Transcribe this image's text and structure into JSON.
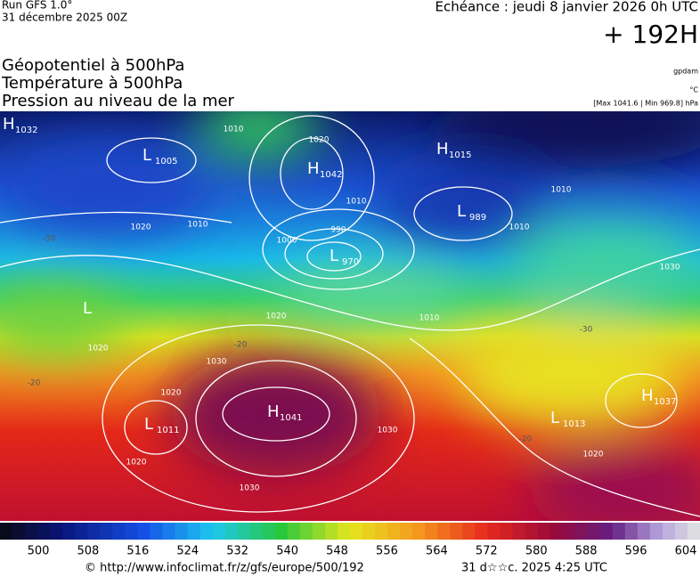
{
  "header": {
    "run": "Run GFS 1.0°",
    "run_date": "31 décembre 2025 00Z",
    "valid": "Echéance : jeudi 8 janvier 2026 0h UTC",
    "lead": "+ 192H"
  },
  "fields": [
    "Géopotentiel à 500hPa",
    "Température à 500hPa",
    "Pression au niveau de la mer"
  ],
  "units": [
    "gpdam",
    "°C",
    "[Max 1041.6 | Min 969.8] hPa"
  ],
  "centers": [
    {
      "type": "H",
      "value": 1032
    },
    {
      "type": "L",
      "value": 1005
    },
    {
      "type": "H",
      "value": 1042
    },
    {
      "type": "H",
      "value": 1015
    },
    {
      "type": "L",
      "value": 989
    },
    {
      "type": "L",
      "value": 970
    },
    {
      "type": "L"
    },
    {
      "type": "H",
      "value": 1041
    },
    {
      "type": "L",
      "value": 1011
    },
    {
      "type": "L",
      "value": 1013
    },
    {
      "type": "H",
      "value": 1037
    }
  ],
  "isobar_labels": [
    1010,
    1020,
    1010,
    1000,
    990,
    1010,
    1020,
    1010,
    1020,
    1030,
    1020,
    1030,
    1030,
    1020,
    1010,
    1010,
    1030,
    1020,
    1020
  ],
  "temperature_labels": [
    -30,
    -20,
    -20,
    -20,
    -30
  ],
  "colorbar_ticks": [
    500,
    508,
    516,
    524,
    532,
    540,
    548,
    556,
    564,
    572,
    580,
    588,
    596,
    604
  ],
  "footer": {
    "source": "© http://www.infoclimat.fr/z/gfs/europe/500/192",
    "generated": "31 d☆☆c. 2025  4:25 UTC"
  }
}
